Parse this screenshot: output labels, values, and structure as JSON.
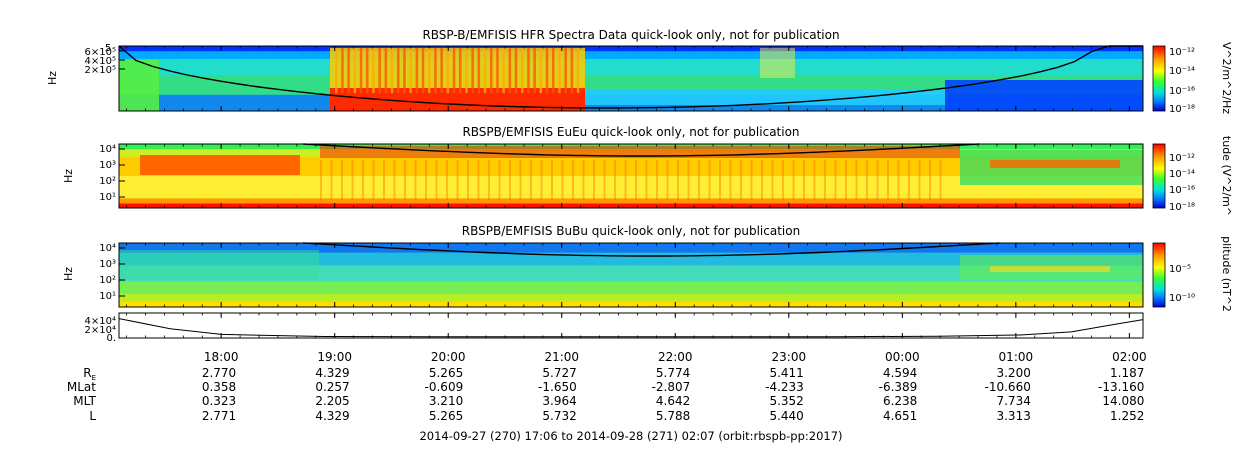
{
  "chart_data": [
    {
      "type": "heatmap",
      "id": "hfr",
      "title": "RBSP-B/EMFISIS  HFR Spectra Data quick-look only, not for publication",
      "ylabel": "Hz",
      "y_ticks": [
        "6×10⁵",
        "4×10⁵",
        "2×10⁵"
      ],
      "y_top_label": "5",
      "colorbar": {
        "label": "V^2/m^2/Hz",
        "ticks": [
          "10⁻¹²",
          "10⁻¹⁴",
          "10⁻¹⁶",
          "10⁻¹⁸"
        ]
      }
    },
    {
      "type": "heatmap",
      "id": "eueu",
      "title": "RBSPB/EMFISIS  EuEu quick-look only, not for publication",
      "ylabel": "Hz",
      "y_ticks": [
        "10⁴",
        "10³",
        "10²",
        "10¹"
      ],
      "colorbar": {
        "label": "tude (V^2/m^",
        "ticks": [
          "10⁻¹²",
          "10⁻¹⁴",
          "10⁻¹⁶",
          "10⁻¹⁸"
        ]
      }
    },
    {
      "type": "heatmap",
      "id": "bubu",
      "title": "RBSPB/EMFISIS  BuBu quick-look only, not for publication",
      "ylabel": "Hz",
      "y_ticks": [
        "10⁴",
        "10³",
        "10²",
        "10¹"
      ],
      "colorbar": {
        "label": "plitude (nT^2",
        "ticks": [
          "10⁻⁵",
          "10⁻¹⁰"
        ]
      }
    },
    {
      "type": "line",
      "id": "freq",
      "y_ticks": [
        "4×10⁴",
        "2×10⁴",
        "0."
      ],
      "x": [
        0,
        0.05,
        0.1,
        0.2,
        0.3,
        0.4,
        0.5,
        0.6,
        0.7,
        0.8,
        0.88,
        0.93,
        0.97,
        1.0
      ],
      "y": [
        3.6,
        1.6,
        0.5,
        0.1,
        0.05,
        0.03,
        0.03,
        0.04,
        0.06,
        0.15,
        0.4,
        1.0,
        2.4,
        3.4
      ]
    }
  ],
  "time_axis": {
    "ticks": [
      "18:00",
      "19:00",
      "20:00",
      "21:00",
      "22:00",
      "23:00",
      "00:00",
      "01:00",
      "02:00"
    ],
    "hours_from_start": [
      0.9,
      1.9,
      2.9,
      3.9,
      4.9,
      5.9,
      6.9,
      7.9,
      8.9
    ],
    "span_hours": 9.02
  },
  "ephemeris": {
    "rows": [
      {
        "label": "R",
        "sub": "E",
        "values": [
          "2.770",
          "4.329",
          "5.265",
          "5.727",
          "5.774",
          "5.411",
          "4.594",
          "3.200",
          "1.187"
        ]
      },
      {
        "label": "MLat",
        "sub": "",
        "values": [
          "0.358",
          "0.257",
          "-0.609",
          "-1.650",
          "-2.807",
          "-4.233",
          "-6.389",
          "-10.660",
          "-13.160"
        ]
      },
      {
        "label": "MLT",
        "sub": "",
        "values": [
          "0.323",
          "2.205",
          "3.210",
          "3.964",
          "4.642",
          "5.352",
          "6.238",
          "7.734",
          "14.080"
        ]
      },
      {
        "label": "L",
        "sub": "",
        "values": [
          "2.771",
          "4.329",
          "5.265",
          "5.732",
          "5.788",
          "5.440",
          "4.651",
          "3.313",
          "1.252"
        ]
      }
    ]
  },
  "footer": "2014-09-27 (270) 17:06 to 2014-09-28 (271) 02:07 (orbit:rbspb-pp:2017)"
}
